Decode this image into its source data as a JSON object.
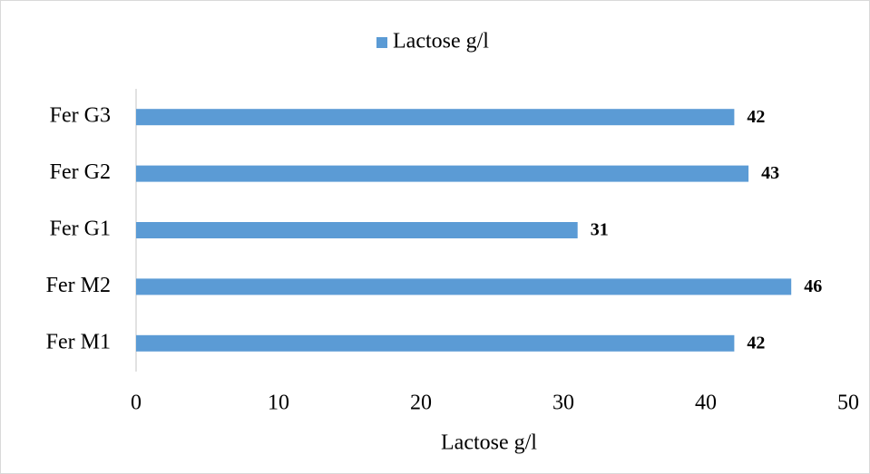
{
  "chart_data": {
    "type": "hbar",
    "categories": [
      "Fer M1",
      "Fer M2",
      "Fer G1",
      "Fer G2",
      "Fer G3"
    ],
    "series": [
      {
        "name": "Lactose g/l",
        "color": "#5b9bd5",
        "values": [
          42,
          46,
          31,
          43,
          42
        ]
      }
    ],
    "xlabel": "Lactose g/l",
    "xlim": [
      0,
      50
    ],
    "xticks": [
      0,
      10,
      20,
      30,
      40,
      50
    ],
    "grid": false,
    "legend": "top"
  }
}
